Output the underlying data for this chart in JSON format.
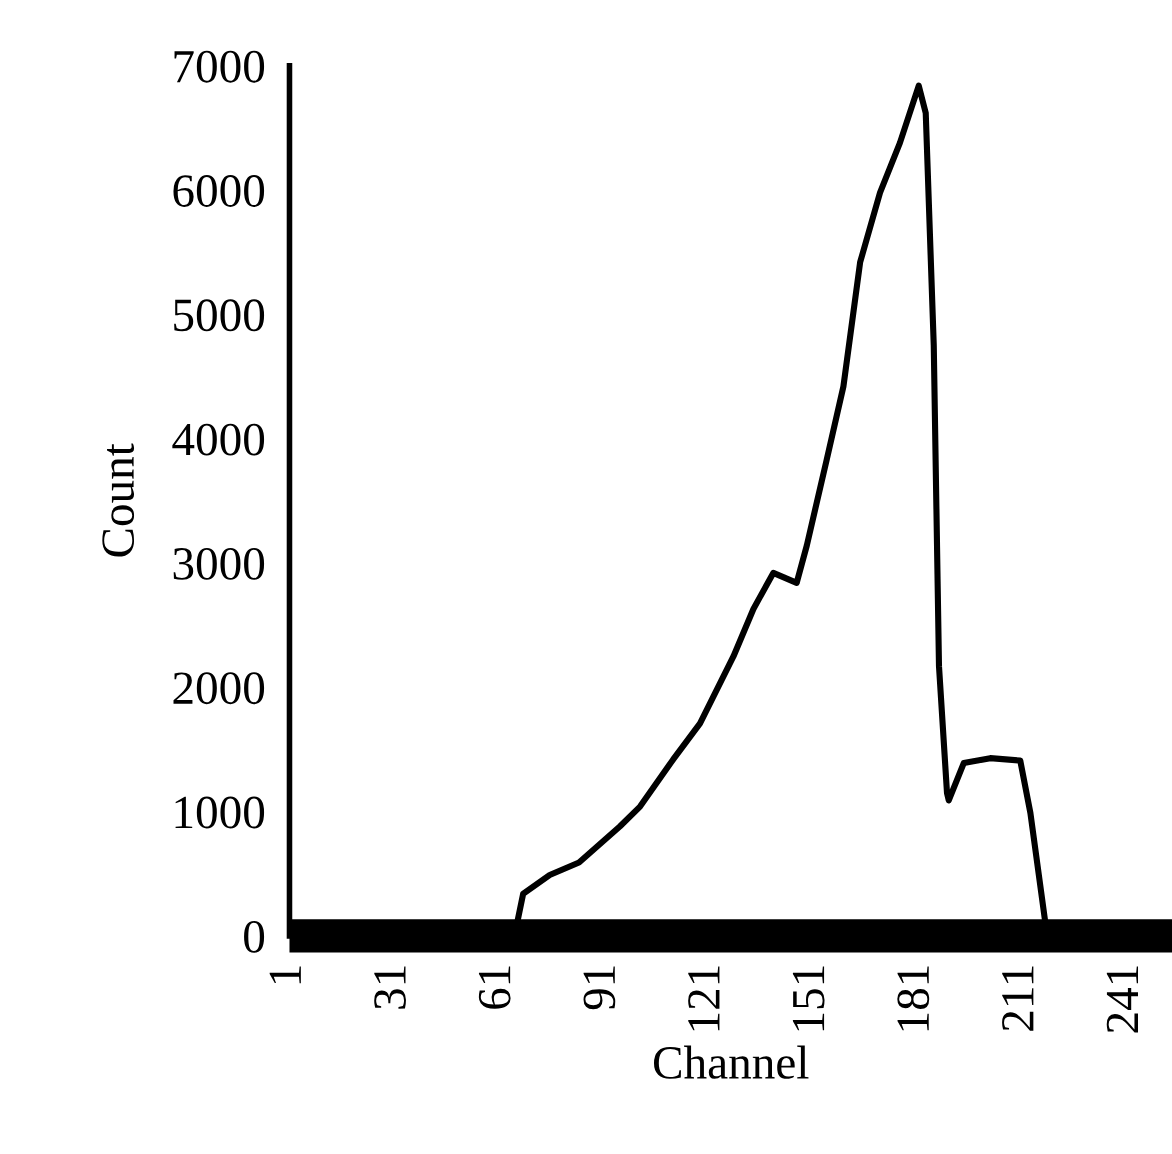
{
  "chart_data": {
    "type": "line",
    "xlabel": "Channel",
    "ylabel": "Count",
    "xlim": [
      1,
      254
    ],
    "xticks": [
      1,
      31,
      61,
      91,
      121,
      151,
      181,
      211,
      241
    ],
    "ylim": [
      0,
      7000
    ],
    "yticks": [
      0,
      1000,
      2000,
      3000,
      4000,
      5000,
      6000,
      7000
    ],
    "marker": "none",
    "line_style": "solid",
    "series": [
      {
        "color": "#000000",
        "x": [
          65.5,
          68,
          75.6,
          84,
          95.7,
          101.5,
          111,
          118.7,
          128.3,
          134,
          139.7,
          146.4,
          149.3,
          155,
          159.8,
          164.6,
          170.3,
          176,
          181.4,
          183.4,
          185.7,
          187.2,
          189.5,
          190,
          194.3,
          201.9,
          210.5,
          213.4,
          218.2
        ],
        "values": [
          0,
          340,
          490,
          590,
          880,
          1040,
          1420,
          1710,
          2250,
          2630,
          2920,
          2840,
          3140,
          3830,
          4420,
          5420,
          5980,
          6380,
          6840,
          6620,
          4750,
          2170,
          1150,
          1090,
          1390,
          1430,
          1410,
          990,
          0
        ]
      }
    ]
  }
}
